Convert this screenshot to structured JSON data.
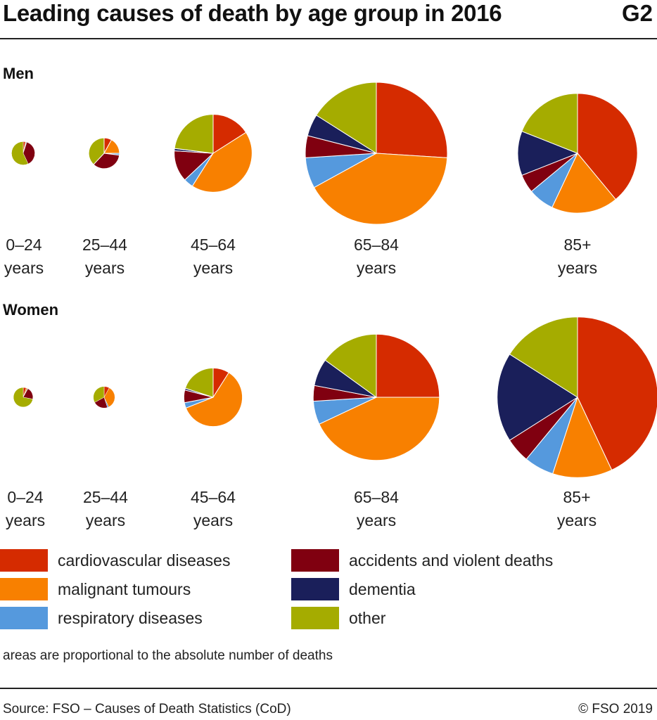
{
  "title": "Leading causes of death by age group in 2016",
  "code": "G2",
  "groups": {
    "men": "Men",
    "women": "Women"
  },
  "ages": [
    {
      "line1": "0–24",
      "line2": "years"
    },
    {
      "line1": "25–44",
      "line2": "years"
    },
    {
      "line1": "45–64",
      "line2": "years"
    },
    {
      "line1": "65–84",
      "line2": "years"
    },
    {
      "line1": "85+",
      "line2": "years"
    }
  ],
  "legend": [
    {
      "label": "cardiovascular diseases",
      "color": "#d52b00"
    },
    {
      "label": "malignant tumours",
      "color": "#f88000"
    },
    {
      "label": "respiratory diseases",
      "color": "#5599dd"
    },
    {
      "label": "accidents and violent deaths",
      "color": "#800010"
    },
    {
      "label": "dementia",
      "color": "#1a1f5a"
    },
    {
      "label": "other",
      "color": "#a5ac00"
    }
  ],
  "note": "areas are proportional to the absolute number of deaths",
  "source": "Source: FSO – Causes of Death Statistics (CoD)",
  "copyright": "© FSO 2019",
  "chart_data": {
    "type": "pie",
    "title": "Leading causes of death by age group in 2016",
    "categories": [
      "cardiovascular diseases",
      "malignant tumours",
      "respiratory diseases",
      "accidents and violent deaths",
      "dementia",
      "other"
    ],
    "area_note": "areas are proportional to the absolute number of deaths",
    "men": [
      {
        "age": "0–24 years",
        "relative_size": 0.027,
        "shares": [
          0.03,
          0.01,
          0.01,
          0.38,
          0.0,
          0.57
        ]
      },
      {
        "age": "25–44 years",
        "relative_size": 0.047,
        "shares": [
          0.08,
          0.17,
          0.02,
          0.35,
          0.0,
          0.38
        ]
      },
      {
        "age": "45–64 years",
        "relative_size": 0.3,
        "shares": [
          0.16,
          0.43,
          0.04,
          0.13,
          0.01,
          0.23
        ]
      },
      {
        "age": "65–84 years",
        "relative_size": 1.0,
        "shares": [
          0.26,
          0.41,
          0.07,
          0.05,
          0.05,
          0.16
        ]
      },
      {
        "age": "85+ years",
        "relative_size": 0.71,
        "shares": [
          0.39,
          0.18,
          0.07,
          0.05,
          0.12,
          0.19
        ]
      }
    ],
    "women": [
      {
        "age": "0–24 years",
        "relative_size": 0.019,
        "shares": [
          0.05,
          0.02,
          0.01,
          0.2,
          0.0,
          0.72
        ]
      },
      {
        "age": "25–44 years",
        "relative_size": 0.023,
        "shares": [
          0.08,
          0.35,
          0.02,
          0.22,
          0.0,
          0.33
        ]
      },
      {
        "age": "45–64 years",
        "relative_size": 0.17,
        "shares": [
          0.09,
          0.6,
          0.03,
          0.07,
          0.01,
          0.2
        ]
      },
      {
        "age": "65–84 years",
        "relative_size": 0.79,
        "shares": [
          0.25,
          0.43,
          0.06,
          0.04,
          0.07,
          0.15
        ]
      },
      {
        "age": "85+ years",
        "relative_size": 1.28,
        "shares": [
          0.43,
          0.12,
          0.06,
          0.05,
          0.18,
          0.16
        ]
      }
    ]
  }
}
